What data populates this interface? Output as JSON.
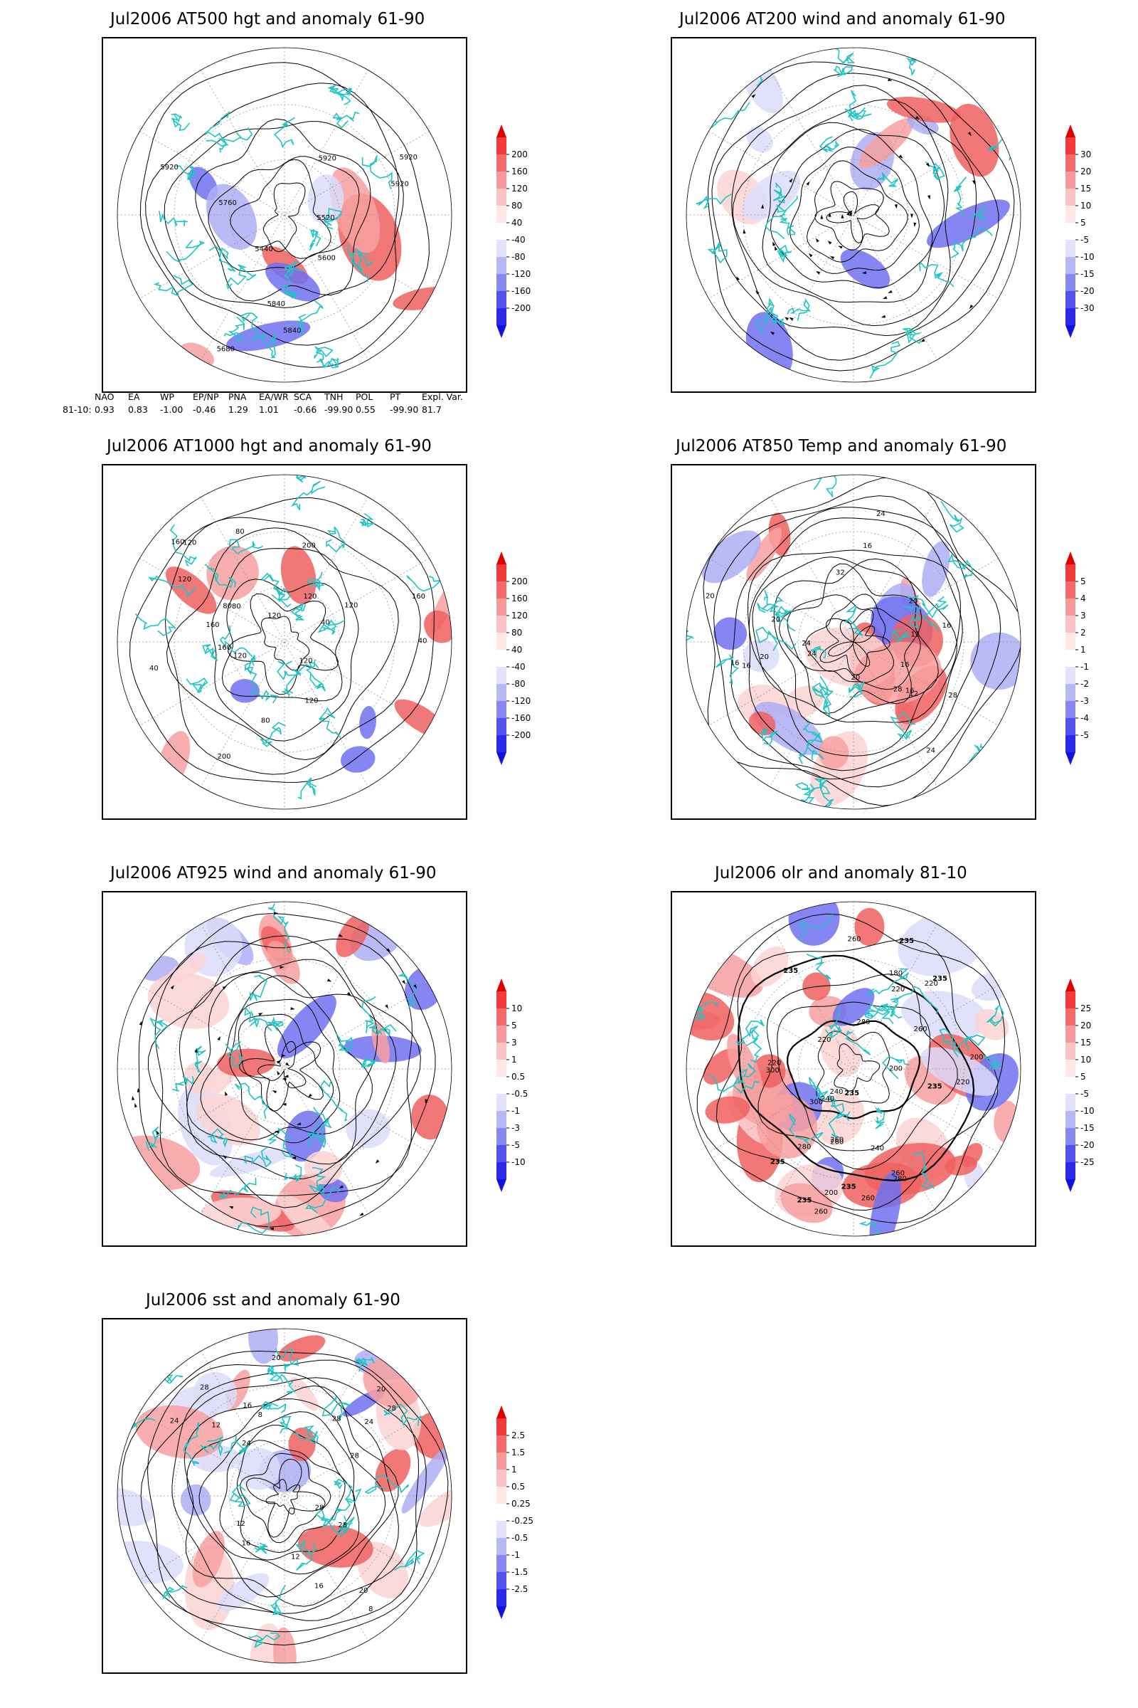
{
  "panels": [
    {
      "id": "p500",
      "title": "Jul2006 AT500 hgt and anomaly 61-90",
      "kind": "hgt",
      "colorbar": [
        "200",
        "160",
        "120",
        "80",
        "40",
        "-40",
        "-80",
        "-120",
        "-160",
        "-200"
      ],
      "labels": [
        "5920",
        "5920",
        "5920",
        "5440",
        "5520",
        "5600",
        "5680",
        "5760",
        "5840",
        "5920",
        "5840"
      ]
    },
    {
      "id": "p200",
      "title": "Jul2006 AT200 wind and anomaly 61-90",
      "kind": "wind",
      "colorbar": [
        "30",
        "20",
        "15",
        "10",
        "5",
        "-5",
        "-10",
        "-15",
        "-20",
        "-30"
      ],
      "labels": []
    },
    {
      "id": "p1000",
      "title": "Jul2006 AT1000 hgt and anomaly 61-90",
      "kind": "hgt",
      "colorbar": [
        "200",
        "160",
        "120",
        "80",
        "40",
        "-40",
        "-80",
        "-120",
        "-160",
        "-200"
      ],
      "labels": [
        "120",
        "160",
        "80",
        "120",
        "200",
        "160",
        "120",
        "40",
        "80",
        "40",
        "40",
        "120",
        "120",
        "160",
        "200",
        "160",
        "120",
        "80",
        "120",
        "80",
        "120"
      ]
    },
    {
      "id": "p850",
      "title": "Jul2006 AT850 Temp and anomaly 61-90",
      "kind": "temp",
      "colorbar": [
        "5",
        "4",
        "3",
        "2",
        "1",
        "-1",
        "-2",
        "-3",
        "-4",
        "-5"
      ],
      "labels": [
        "16",
        "16",
        "16",
        "20",
        "12",
        "20",
        "24",
        "28",
        "24",
        "12",
        "16",
        "20",
        "16",
        "20",
        "24",
        "28",
        "20",
        "16",
        "32",
        "24"
      ]
    },
    {
      "id": "p925",
      "title": "Jul2006 AT925 wind and anomaly 61-90",
      "kind": "wind925",
      "colorbar": [
        "10",
        "5",
        "3",
        "1",
        "0.5",
        "-0.5",
        "-1",
        "-3",
        "-5",
        "-10"
      ],
      "labels": []
    },
    {
      "id": "polr",
      "title": "Jul2006 olr and anomaly 81-10",
      "kind": "olr",
      "colorbar": [
        "25",
        "20",
        "15",
        "10",
        "5",
        "-5",
        "-10",
        "-15",
        "-20",
        "-25"
      ],
      "labels": [
        "260",
        "235",
        "280",
        "260",
        "235",
        "240",
        "260",
        "220",
        "235",
        "220",
        "200",
        "235",
        "260",
        "220",
        "235",
        "200",
        "180",
        "200",
        "220",
        "235",
        "260",
        "300",
        "240",
        "280",
        "260",
        "220",
        "235",
        "240",
        "300",
        "260",
        "280",
        "235"
      ]
    },
    {
      "id": "psst",
      "title": "Jul2006 sst and anomaly 61-90",
      "kind": "sst",
      "colorbar": [
        "2.5",
        "1.5",
        "1",
        "0.5",
        "0.25",
        "-0.25",
        "-0.5",
        "-1",
        "-1.5",
        "-2.5"
      ],
      "labels": [
        "28",
        "28",
        "24",
        "24",
        "20",
        "20",
        "16",
        "16",
        "12",
        "12",
        "8",
        "28",
        "28",
        "20",
        "16",
        "12",
        "8",
        "28",
        "24",
        "28"
      ]
    }
  ],
  "teleconnection": {
    "headers": [
      "NAO",
      "EA",
      "WP",
      "EP/NP",
      "PNA",
      "EA/WR",
      "SCA",
      "TNH",
      "POL",
      "PT",
      "Expl. Var."
    ],
    "row_label": "81-10:",
    "values": [
      "0.93",
      "0.83",
      "-1.00",
      "-0.46",
      "1.29",
      "1.01",
      "-0.66",
      "-99.90",
      "0.55",
      "-99.90",
      "81.7"
    ]
  },
  "colors": {
    "coast": "#1fc4c4",
    "pos": "#e81c1c",
    "neg": "#2222f0",
    "contour": "#000000"
  }
}
